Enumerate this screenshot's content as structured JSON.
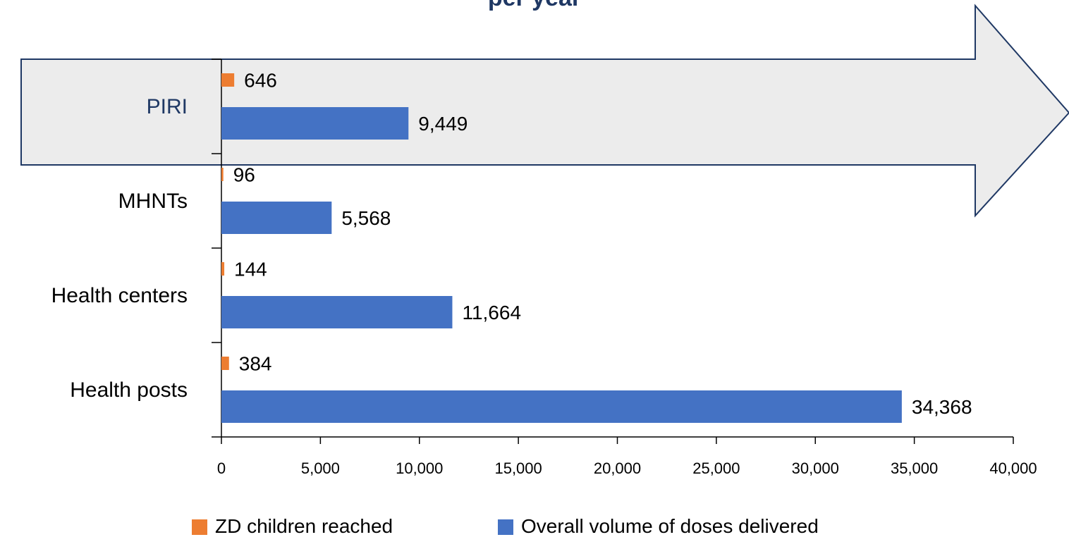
{
  "chart_data": {
    "type": "bar",
    "orientation": "horizontal",
    "title": "per year",
    "categories": [
      "PIRI",
      "MHNTs",
      "Health centers",
      "Health posts"
    ],
    "series": [
      {
        "name": "ZD children reached",
        "values": [
          646,
          96,
          144,
          384
        ],
        "labels": [
          "646",
          "96",
          "144",
          "384"
        ],
        "color": "#ed7d31"
      },
      {
        "name": "Overall volume of doses delivered",
        "values": [
          9449,
          5568,
          11664,
          34368
        ],
        "labels": [
          "9,449",
          "5,568",
          "11,664",
          "34,368"
        ],
        "color": "#4472c4"
      }
    ],
    "xlim": [
      0,
      40000
    ],
    "xticks": [
      0,
      5000,
      10000,
      15000,
      20000,
      25000,
      30000,
      35000,
      40000
    ],
    "xtick_labels": [
      "0",
      "5,000",
      "10,000",
      "15,000",
      "20,000",
      "25,000",
      "30,000",
      "35,000",
      "40,000"
    ],
    "highlighted_category": "PIRI",
    "highlight_shape": "arrow",
    "highlight_color": "#ececec",
    "highlight_border_color": "#1f3864",
    "legend_position": "bottom",
    "grid": false
  }
}
